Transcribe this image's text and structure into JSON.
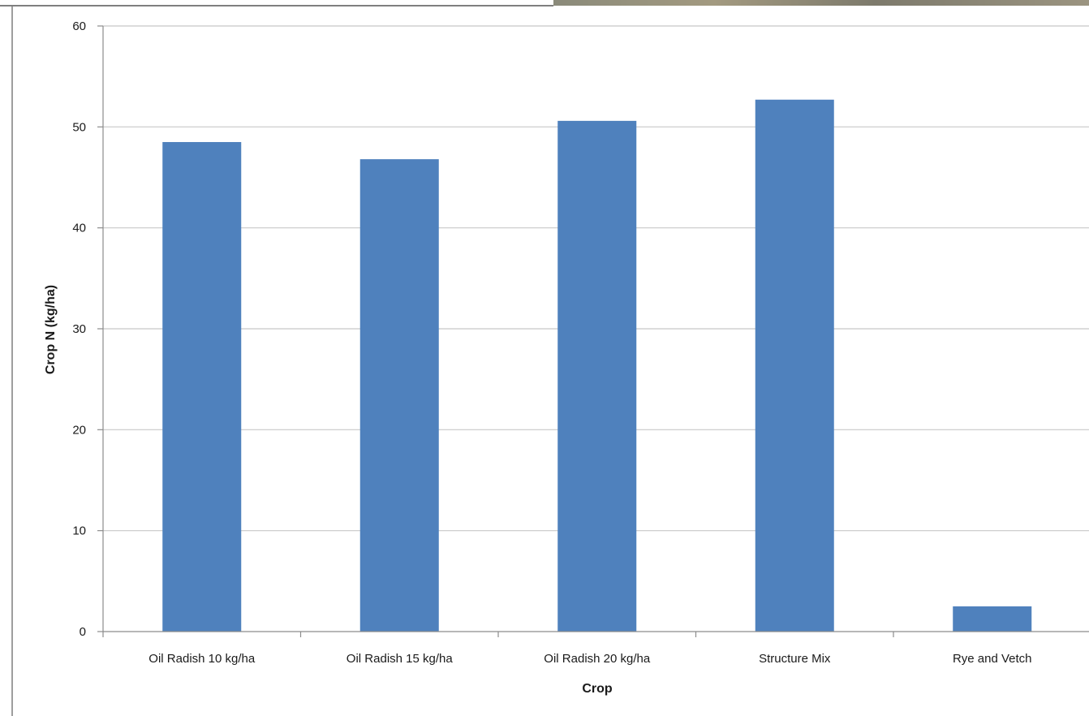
{
  "chart_data": {
    "type": "bar",
    "title": "",
    "xlabel": "Crop",
    "ylabel": "Crop N (kg/ha)",
    "categories": [
      "Oil Radish 10 kg/ha",
      "Oil Radish 15 kg/ha",
      "Oil Radish 20 kg/ha",
      "Structure Mix",
      "Rye and Vetch"
    ],
    "values": [
      48.5,
      46.8,
      50.6,
      52.7,
      2.5
    ],
    "ylim": [
      0,
      60
    ],
    "yticks": [
      "0",
      "10",
      "20",
      "30",
      "40",
      "50",
      "60"
    ],
    "grid": true,
    "legend": "none",
    "bar_color": "#4f81bd",
    "grid_color": "#c8c8c8",
    "axis_color": "#8c8c8c"
  }
}
